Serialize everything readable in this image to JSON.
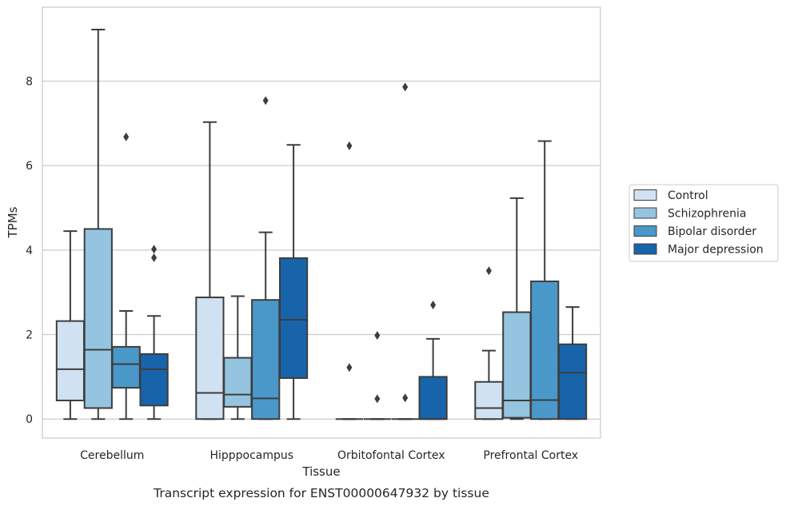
{
  "chart_data": {
    "type": "box",
    "caption": "Transcript expression for ENST00000647932 by tissue",
    "xlabel": "Tissue",
    "ylabel": "TPMs",
    "ylim": [
      -0.45,
      9.75
    ],
    "yticks": [
      0,
      2,
      4,
      6,
      8
    ],
    "grid": true,
    "legend_placement": "right",
    "categories": [
      "Cerebellum",
      "Hipppocampus",
      "Orbitofontal Cortex",
      "Prefrontal Cortex"
    ],
    "series": [
      {
        "name": "Control",
        "color": "#d0e1f2",
        "boxes": [
          {
            "whislo": 0,
            "q1": 0.44,
            "med": 1.18,
            "q3": 2.32,
            "whishi": 4.45,
            "fliers": []
          },
          {
            "whislo": 0,
            "q1": 0,
            "med": 0.62,
            "q3": 2.88,
            "whishi": 7.03,
            "fliers": []
          },
          {
            "whislo": 0,
            "q1": 0,
            "med": 0,
            "q3": 0,
            "whishi": 0,
            "fliers": [
              1.22,
              6.47
            ]
          },
          {
            "whislo": 0,
            "q1": 0,
            "med": 0.26,
            "q3": 0.88,
            "whishi": 1.62,
            "fliers": [
              3.51
            ]
          }
        ]
      },
      {
        "name": "Schizophrenia",
        "color": "#94c4df",
        "boxes": [
          {
            "whislo": 0,
            "q1": 0.26,
            "med": 1.64,
            "q3": 4.5,
            "whishi": 9.22,
            "fliers": []
          },
          {
            "whislo": 0,
            "q1": 0.29,
            "med": 0.58,
            "q3": 1.45,
            "whishi": 2.91,
            "fliers": []
          },
          {
            "whislo": 0,
            "q1": 0,
            "med": 0,
            "q3": 0,
            "whishi": 0,
            "fliers": [
              0.48,
              1.98
            ]
          },
          {
            "whislo": 0,
            "q1": 0.03,
            "med": 0.44,
            "q3": 2.53,
            "whishi": 5.23,
            "fliers": []
          }
        ]
      },
      {
        "name": "Bipolar disorder",
        "color": "#4a98c9",
        "boxes": [
          {
            "whislo": 0,
            "q1": 0.74,
            "med": 1.3,
            "q3": 1.71,
            "whishi": 2.56,
            "fliers": [
              6.68
            ]
          },
          {
            "whislo": 0,
            "q1": 0,
            "med": 0.49,
            "q3": 2.82,
            "whishi": 4.42,
            "fliers": [
              7.54
            ]
          },
          {
            "whislo": 0,
            "q1": 0,
            "med": 0,
            "q3": 0,
            "whishi": 0,
            "fliers": [
              0.5,
              7.86
            ]
          },
          {
            "whislo": 0,
            "q1": 0,
            "med": 0.45,
            "q3": 3.26,
            "whishi": 6.58,
            "fliers": []
          }
        ]
      },
      {
        "name": "Major depression",
        "color": "#1764ab",
        "boxes": [
          {
            "whislo": 0,
            "q1": 0.32,
            "med": 1.18,
            "q3": 1.54,
            "whishi": 2.44,
            "fliers": [
              3.82,
              4.02
            ]
          },
          {
            "whislo": 0,
            "q1": 0.97,
            "med": 2.35,
            "q3": 3.81,
            "whishi": 6.49,
            "fliers": []
          },
          {
            "whislo": 0,
            "q1": 0,
            "med": 0,
            "q3": 1.0,
            "whishi": 1.9,
            "fliers": [
              2.7
            ]
          },
          {
            "whislo": 0,
            "q1": 0,
            "med": 1.1,
            "q3": 1.77,
            "whishi": 2.65,
            "fliers": []
          }
        ]
      }
    ]
  }
}
